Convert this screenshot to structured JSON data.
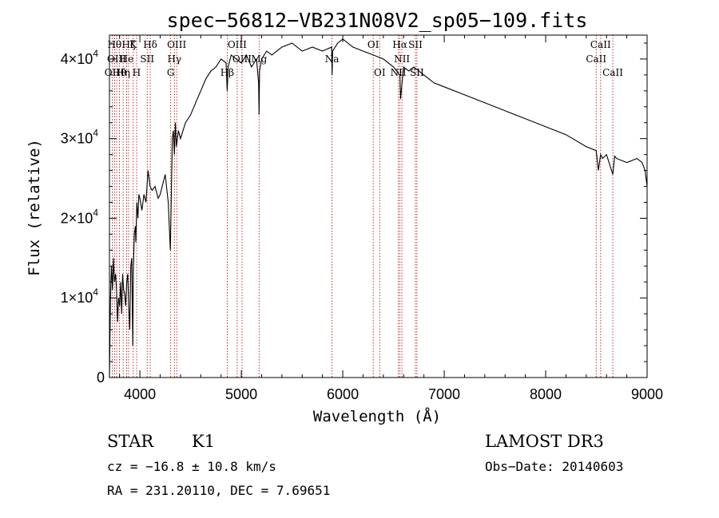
{
  "chart_data": {
    "type": "line",
    "title": "spec−56812−VB231N08V2_sp05−109.fits",
    "xlabel": "Wavelength (Å)",
    "ylabel": "Flux (relative)",
    "xlim": [
      3700,
      9000
    ],
    "ylim": [
      0,
      43000
    ],
    "x_ticks": [
      4000,
      5000,
      6000,
      7000,
      8000,
      9000
    ],
    "x_tick_labels": [
      "4000",
      "5000",
      "6000",
      "7000",
      "8000",
      "9000"
    ],
    "y_ticks": [
      0,
      10000,
      20000,
      30000,
      40000
    ],
    "y_tick_labels": [
      {
        "base": "0",
        "exp": ""
      },
      {
        "base": "1×10",
        "exp": "4"
      },
      {
        "base": "2×10",
        "exp": "4"
      },
      {
        "base": "3×10",
        "exp": "4"
      },
      {
        "base": "4×10",
        "exp": "4"
      }
    ],
    "series": [
      {
        "name": "flux",
        "x": [
          3700,
          3710,
          3720,
          3730,
          3740,
          3750,
          3760,
          3770,
          3780,
          3790,
          3800,
          3810,
          3820,
          3830,
          3840,
          3850,
          3860,
          3870,
          3880,
          3890,
          3900,
          3910,
          3920,
          3930,
          3935,
          3945,
          3955,
          3960,
          3970,
          3980,
          3990,
          4000,
          4020,
          4040,
          4060,
          4080,
          4101,
          4120,
          4150,
          4180,
          4200,
          4220,
          4250,
          4280,
          4300,
          4320,
          4330,
          4340,
          4350,
          4360,
          4380,
          4400,
          4450,
          4500,
          4550,
          4600,
          4650,
          4700,
          4750,
          4800,
          4850,
          4861,
          4870,
          4900,
          4950,
          5000,
          5050,
          5100,
          5150,
          5170,
          5175,
          5180,
          5200,
          5250,
          5300,
          5400,
          5500,
          5600,
          5700,
          5800,
          5890,
          5895,
          5900,
          5950,
          6000,
          6100,
          6200,
          6300,
          6400,
          6500,
          6563,
          6570,
          6600,
          6650,
          6700,
          6800,
          6900,
          7000,
          7200,
          7400,
          7600,
          7800,
          8000,
          8200,
          8400,
          8498,
          8520,
          8542,
          8560,
          8600,
          8662,
          8680,
          8700,
          8800,
          8900,
          8950,
          8980,
          9000
        ],
        "y": [
          0,
          10000,
          14000,
          11000,
          15000,
          12000,
          13000,
          11000,
          7000,
          10000,
          9000,
          12000,
          8000,
          13000,
          11000,
          10500,
          9000,
          12000,
          13000,
          9000,
          6000,
          14000,
          15000,
          4000,
          13000,
          18000,
          19000,
          17000,
          22000,
          20000,
          23000,
          22500,
          21000,
          23000,
          22000,
          26000,
          24000,
          23500,
          24000,
          22500,
          23000,
          24000,
          25500,
          22000,
          16000,
          30000,
          31000,
          28000,
          32000,
          29000,
          31000,
          30000,
          32000,
          33000,
          34500,
          36000,
          37500,
          38500,
          39000,
          40000,
          39500,
          36000,
          39000,
          40500,
          40000,
          39500,
          40500,
          39000,
          40000,
          37000,
          33000,
          38500,
          40000,
          41000,
          40500,
          41500,
          42000,
          41000,
          41500,
          41000,
          41500,
          38000,
          41000,
          42000,
          42500,
          41500,
          41000,
          40500,
          40000,
          39000,
          38000,
          35000,
          39000,
          38500,
          39000,
          38000,
          37000,
          36500,
          35500,
          34500,
          33500,
          32500,
          31500,
          30500,
          29000,
          28500,
          26000,
          28000,
          27500,
          28000,
          25500,
          27800,
          27500,
          27000,
          27500,
          27000,
          26000,
          24000
        ]
      }
    ],
    "lines": [
      {
        "x": 3727,
        "label": "OII",
        "row": 2
      },
      {
        "x": 3750,
        "label": "Hθ",
        "row": 0
      },
      {
        "x": 3771,
        "label": "OIII",
        "row": 1
      },
      {
        "x": 3798,
        "label": "Hθ",
        "row": 2
      },
      {
        "x": 3835,
        "label": "Hη",
        "row": 2
      },
      {
        "x": 3869,
        "label": "He",
        "row": 1
      },
      {
        "x": 3889,
        "label": "Hζ",
        "row": 0
      },
      {
        "x": 3934,
        "label": "K",
        "row": 0
      },
      {
        "x": 3968,
        "label": "H",
        "row": 2
      },
      {
        "x": 4072,
        "label": "SII",
        "row": 1
      },
      {
        "x": 4102,
        "label": "Hδ",
        "row": 0
      },
      {
        "x": 4304,
        "label": "G",
        "row": 2
      },
      {
        "x": 4340,
        "label": "Hγ",
        "row": 1
      },
      {
        "x": 4363,
        "label": "OIII",
        "row": 0
      },
      {
        "x": 4861,
        "label": "Hβ",
        "row": 2
      },
      {
        "x": 4959,
        "label": "OIII",
        "row": 0
      },
      {
        "x": 5007,
        "label": "OIII",
        "row": 1
      },
      {
        "x": 5175,
        "label": "Mg",
        "row": 1
      },
      {
        "x": 5894,
        "label": "Na",
        "row": 1
      },
      {
        "x": 6300,
        "label": "OI",
        "row": 0
      },
      {
        "x": 6364,
        "label": "OI",
        "row": 2
      },
      {
        "x": 6548,
        "label": "NII",
        "row": 2
      },
      {
        "x": 6563,
        "label": "Hα",
        "row": 0
      },
      {
        "x": 6583,
        "label": "NII",
        "row": 1
      },
      {
        "x": 6716,
        "label": "SII",
        "row": 0
      },
      {
        "x": 6731,
        "label": "SII",
        "row": 2
      },
      {
        "x": 8498,
        "label": "CaII",
        "row": 1
      },
      {
        "x": 8542,
        "label": "CaII",
        "row": 0
      },
      {
        "x": 8662,
        "label": "CaII",
        "row": 2
      }
    ]
  },
  "info": {
    "object_class": "STAR",
    "subclass": "K1",
    "survey": "LAMOST DR3",
    "cz": "cz = −16.8 ± 10.8 km/s",
    "obs_date": "Obs−Date: 20140603",
    "radec": "RA = 231.20110, DEC =   7.69651"
  },
  "colors": {
    "spectrum": "#000000",
    "line_marker": "#b00000",
    "axes": "#000000"
  }
}
